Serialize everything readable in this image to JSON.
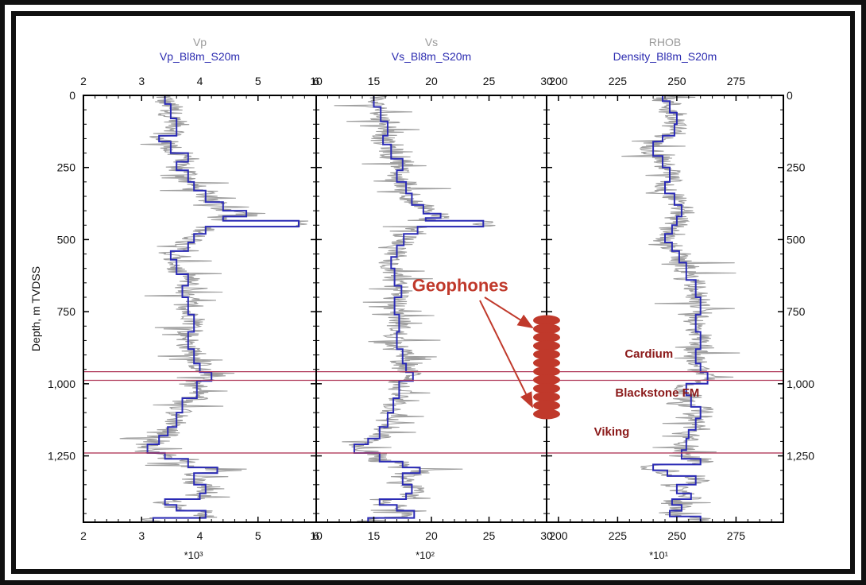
{
  "chart_data": {
    "type": "line",
    "y_axis": {
      "label": "Depth, m TVDSS",
      "range": [
        0,
        1480
      ],
      "ticks": [
        0,
        250,
        500,
        750,
        1000,
        1250
      ],
      "tick_labels": [
        "0",
        "250",
        "500",
        "750",
        "1,000",
        "1,250"
      ],
      "inverted": true
    },
    "tracks": [
      {
        "title": "Vp",
        "subtitle": "Vp_Bl8m_S20m",
        "unit": "*10³",
        "xlim": [
          2,
          6
        ],
        "ticks": [
          2,
          3,
          4,
          5,
          6
        ],
        "tick_labels": [
          "2",
          "3",
          "4",
          "5",
          "6"
        ],
        "raw_color": "#9e9e9e",
        "smooth_color": "#2a2ab5",
        "blocked": [
          {
            "depth": 0,
            "value": 3.4
          },
          {
            "depth": 30,
            "value": 3.5
          },
          {
            "depth": 80,
            "value": 3.6
          },
          {
            "depth": 140,
            "value": 3.3
          },
          {
            "depth": 160,
            "value": 3.5
          },
          {
            "depth": 200,
            "value": 3.8
          },
          {
            "depth": 230,
            "value": 3.6
          },
          {
            "depth": 260,
            "value": 3.8
          },
          {
            "depth": 300,
            "value": 3.9
          },
          {
            "depth": 330,
            "value": 4.1
          },
          {
            "depth": 370,
            "value": 4.4
          },
          {
            "depth": 400,
            "value": 4.8
          },
          {
            "depth": 420,
            "value": 4.4
          },
          {
            "depth": 435,
            "value": 5.7
          },
          {
            "depth": 455,
            "value": 4.1
          },
          {
            "depth": 480,
            "value": 3.9
          },
          {
            "depth": 510,
            "value": 3.8
          },
          {
            "depth": 540,
            "value": 3.5
          },
          {
            "depth": 570,
            "value": 3.6
          },
          {
            "depth": 620,
            "value": 3.8
          },
          {
            "depth": 660,
            "value": 3.7
          },
          {
            "depth": 700,
            "value": 3.8
          },
          {
            "depth": 760,
            "value": 3.9
          },
          {
            "depth": 820,
            "value": 3.8
          },
          {
            "depth": 880,
            "value": 3.9
          },
          {
            "depth": 930,
            "value": 4.0
          },
          {
            "depth": 960,
            "value": 4.2
          },
          {
            "depth": 990,
            "value": 3.95
          },
          {
            "depth": 1050,
            "value": 3.7
          },
          {
            "depth": 1100,
            "value": 3.6
          },
          {
            "depth": 1150,
            "value": 3.45
          },
          {
            "depth": 1180,
            "value": 3.3
          },
          {
            "depth": 1210,
            "value": 3.1
          },
          {
            "depth": 1240,
            "value": 3.4
          },
          {
            "depth": 1260,
            "value": 3.8
          },
          {
            "depth": 1290,
            "value": 4.3
          },
          {
            "depth": 1310,
            "value": 3.9
          },
          {
            "depth": 1350,
            "value": 4.1
          },
          {
            "depth": 1380,
            "value": 4.0
          },
          {
            "depth": 1400,
            "value": 3.4
          },
          {
            "depth": 1420,
            "value": 3.6
          },
          {
            "depth": 1440,
            "value": 4.1
          },
          {
            "depth": 1465,
            "value": 3.2
          },
          {
            "depth": 1480,
            "value": 3.0
          }
        ]
      },
      {
        "title": "Vs",
        "subtitle": "Vs_Bl8m_S20m",
        "unit": "*10²",
        "xlim": [
          10,
          30
        ],
        "ticks": [
          10,
          15,
          20,
          25,
          30
        ],
        "tick_labels": [
          "10",
          "15",
          "20",
          "25",
          "30"
        ],
        "raw_color": "#9e9e9e",
        "smooth_color": "#2a2ab5",
        "blocked": [
          {
            "depth": 0,
            "value": 15
          },
          {
            "depth": 40,
            "value": 15.6
          },
          {
            "depth": 90,
            "value": 16.2
          },
          {
            "depth": 140,
            "value": 15.8
          },
          {
            "depth": 170,
            "value": 16.5
          },
          {
            "depth": 220,
            "value": 17.5
          },
          {
            "depth": 260,
            "value": 17.0
          },
          {
            "depth": 300,
            "value": 17.8
          },
          {
            "depth": 340,
            "value": 18.3
          },
          {
            "depth": 380,
            "value": 19.3
          },
          {
            "depth": 410,
            "value": 20.8
          },
          {
            "depth": 425,
            "value": 19.5
          },
          {
            "depth": 435,
            "value": 24.5
          },
          {
            "depth": 455,
            "value": 18.8
          },
          {
            "depth": 480,
            "value": 17.6
          },
          {
            "depth": 520,
            "value": 17.0
          },
          {
            "depth": 560,
            "value": 16.5
          },
          {
            "depth": 600,
            "value": 16.8
          },
          {
            "depth": 660,
            "value": 17.4
          },
          {
            "depth": 700,
            "value": 16.8
          },
          {
            "depth": 760,
            "value": 17.2
          },
          {
            "depth": 820,
            "value": 17.0
          },
          {
            "depth": 880,
            "value": 17.5
          },
          {
            "depth": 930,
            "value": 17.8
          },
          {
            "depth": 960,
            "value": 18.4
          },
          {
            "depth": 990,
            "value": 17.2
          },
          {
            "depth": 1050,
            "value": 16.7
          },
          {
            "depth": 1100,
            "value": 16.2
          },
          {
            "depth": 1150,
            "value": 15.5
          },
          {
            "depth": 1190,
            "value": 14.5
          },
          {
            "depth": 1210,
            "value": 13.3
          },
          {
            "depth": 1240,
            "value": 15.5
          },
          {
            "depth": 1270,
            "value": 17.5
          },
          {
            "depth": 1290,
            "value": 19.0
          },
          {
            "depth": 1310,
            "value": 17.5
          },
          {
            "depth": 1350,
            "value": 18.3
          },
          {
            "depth": 1380,
            "value": 17.8
          },
          {
            "depth": 1400,
            "value": 15.5
          },
          {
            "depth": 1420,
            "value": 17.0
          },
          {
            "depth": 1440,
            "value": 18.5
          },
          {
            "depth": 1465,
            "value": 14.5
          },
          {
            "depth": 1480,
            "value": 13.0
          }
        ]
      },
      {
        "title": "RHOB",
        "subtitle": "Density_Bl8m_S20m",
        "unit": "*10¹",
        "xlim": [
          195,
          295
        ],
        "ticks": [
          200,
          225,
          250,
          275
        ],
        "tick_labels": [
          "200",
          "225",
          "250",
          "275"
        ],
        "raw_color": "#9e9e9e",
        "smooth_color": "#2a2ab5",
        "blocked": [
          {
            "depth": 0,
            "value": 244
          },
          {
            "depth": 20,
            "value": 247
          },
          {
            "depth": 60,
            "value": 250
          },
          {
            "depth": 100,
            "value": 249
          },
          {
            "depth": 140,
            "value": 244
          },
          {
            "depth": 160,
            "value": 240
          },
          {
            "depth": 210,
            "value": 244
          },
          {
            "depth": 250,
            "value": 247
          },
          {
            "depth": 300,
            "value": 245
          },
          {
            "depth": 340,
            "value": 249
          },
          {
            "depth": 380,
            "value": 252
          },
          {
            "depth": 420,
            "value": 250
          },
          {
            "depth": 450,
            "value": 248
          },
          {
            "depth": 480,
            "value": 245
          },
          {
            "depth": 510,
            "value": 248
          },
          {
            "depth": 540,
            "value": 251
          },
          {
            "depth": 580,
            "value": 254
          },
          {
            "depth": 640,
            "value": 258
          },
          {
            "depth": 700,
            "value": 260
          },
          {
            "depth": 760,
            "value": 258
          },
          {
            "depth": 820,
            "value": 260
          },
          {
            "depth": 880,
            "value": 258
          },
          {
            "depth": 930,
            "value": 260
          },
          {
            "depth": 960,
            "value": 263
          },
          {
            "depth": 1000,
            "value": 254
          },
          {
            "depth": 1040,
            "value": 256
          },
          {
            "depth": 1080,
            "value": 260
          },
          {
            "depth": 1120,
            "value": 258
          },
          {
            "depth": 1160,
            "value": 255
          },
          {
            "depth": 1190,
            "value": 254
          },
          {
            "depth": 1230,
            "value": 252
          },
          {
            "depth": 1260,
            "value": 260
          },
          {
            "depth": 1280,
            "value": 240
          },
          {
            "depth": 1300,
            "value": 246
          },
          {
            "depth": 1320,
            "value": 258
          },
          {
            "depth": 1350,
            "value": 250
          },
          {
            "depth": 1380,
            "value": 256
          },
          {
            "depth": 1400,
            "value": 248
          },
          {
            "depth": 1420,
            "value": 252
          },
          {
            "depth": 1440,
            "value": 247
          },
          {
            "depth": 1460,
            "value": 260
          },
          {
            "depth": 1480,
            "value": 262
          }
        ]
      }
    ],
    "horizons": [
      {
        "depth": 958,
        "color": "#b03a5a"
      },
      {
        "depth": 988,
        "color": "#b03a5a"
      },
      {
        "depth": 1240,
        "color": "#b03a5a"
      }
    ],
    "annotations": [
      {
        "text": "Geophones",
        "depth": 680,
        "x_value": 22.5,
        "track": 1,
        "style": "big"
      },
      {
        "text": "Cardium",
        "depth": 910,
        "x_value": 228,
        "track": 2,
        "style": "small"
      },
      {
        "text": "Blackstone FM",
        "depth": 1045,
        "x_value": 224,
        "track": 2,
        "style": "small"
      },
      {
        "text": "Viking",
        "depth": 1180,
        "x_value": 215,
        "track": 2,
        "style": "small"
      }
    ],
    "geophones": {
      "count": 12,
      "top_depth": 780,
      "bottom_depth": 1105,
      "x_value": 30,
      "color": "#c0392b"
    }
  }
}
